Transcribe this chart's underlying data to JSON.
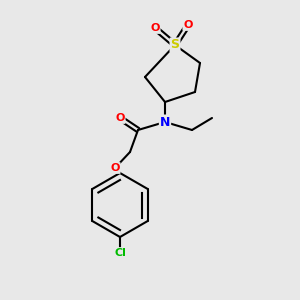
{
  "background_color": "#e8e8e8",
  "bond_color": "#000000",
  "atom_colors": {
    "S": "#cccc00",
    "O": "#ff0000",
    "N": "#0000ff",
    "Cl": "#00bb00",
    "C": "#000000"
  },
  "figsize": [
    3.0,
    3.0
  ],
  "dpi": 100
}
